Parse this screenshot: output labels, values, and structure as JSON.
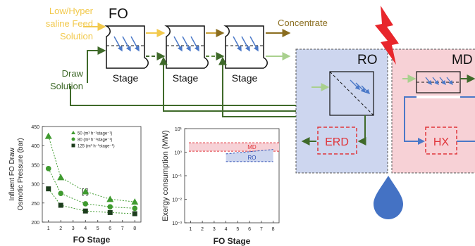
{
  "process": {
    "fo_title": "FO",
    "feed_label_lines": [
      "Low/Hyper",
      "saline Feed",
      "Solution"
    ],
    "draw_label_lines": [
      "Draw",
      "Solution"
    ],
    "concentrate_label": "Concentrate",
    "stage_labels": [
      "Stage",
      "Stage",
      "Stage"
    ],
    "ro_title": "RO",
    "md_title": "MD",
    "erd_label": "ERD",
    "hx_label": "HX"
  },
  "colors": {
    "feed": "#f2c94c",
    "concentrate": "#8a6d1f",
    "draw": "#3f6a2a",
    "draw_light": "#a9d08e",
    "ro_panel": "#cdd6ef",
    "md_panel": "#f7d1d6",
    "red_dashed": "#e0353a",
    "membrane_arrow": "#4a78c8",
    "water_drop": "#4472c4",
    "lightning": "#e8262b",
    "chart_green": "#3f9a2f",
    "chart_dark": "#1d3d1d"
  },
  "chart_data": [
    {
      "type": "line",
      "ylabel_lines": [
        "Influent FO Draw",
        "Osmotic Pressure (bar)"
      ],
      "xlabel": "FO Stage",
      "xlim": [
        0.5,
        8.5
      ],
      "ylim": [
        200,
        450
      ],
      "x_ticks": [
        1,
        2,
        3,
        4,
        5,
        6,
        7,
        8
      ],
      "y_ticks": [
        200,
        250,
        300,
        350,
        400,
        450
      ],
      "grid": false,
      "legend_position": "top-right",
      "annotation": "[ ]",
      "series": [
        {
          "name": "50 (m³ h⁻¹stage⁻¹)",
          "marker": "triangle",
          "x": [
            1,
            2,
            4,
            6,
            8
          ],
          "y": [
            425,
            317,
            280,
            260,
            253
          ]
        },
        {
          "name": "80 (m³ h⁻¹stage⁻¹)",
          "marker": "circle",
          "x": [
            1,
            2,
            4,
            6,
            8
          ],
          "y": [
            340,
            275,
            248,
            240,
            236
          ]
        },
        {
          "name": "125 (m³ h⁻¹stage⁻¹)",
          "marker": "square",
          "x": [
            1,
            2,
            4,
            6,
            8
          ],
          "y": [
            287,
            244,
            229,
            225,
            222
          ]
        }
      ]
    },
    {
      "type": "area",
      "ylabel": "Exergy consumption (MW)",
      "xlabel": "FO Stage",
      "xlim": [
        0.5,
        8.5
      ],
      "yscale": "log",
      "ylim": [
        0.001,
        10
      ],
      "x_ticks": [
        1,
        2,
        3,
        4,
        5,
        6,
        7,
        8
      ],
      "y_ticks": [
        "10⁻³",
        "10⁻²",
        "10⁻¹",
        "10⁰",
        "10¹"
      ],
      "grid": false,
      "series": [
        {
          "name": "MD",
          "x": [
            1,
            8
          ],
          "upper": [
            2.5,
            2.5
          ],
          "lower": [
            1.1,
            1.1
          ]
        },
        {
          "name": "RO",
          "x": [
            4,
            8
          ],
          "upper": [
            0.85,
            1.3
          ],
          "lower": [
            0.4,
            0.4
          ]
        }
      ]
    }
  ]
}
